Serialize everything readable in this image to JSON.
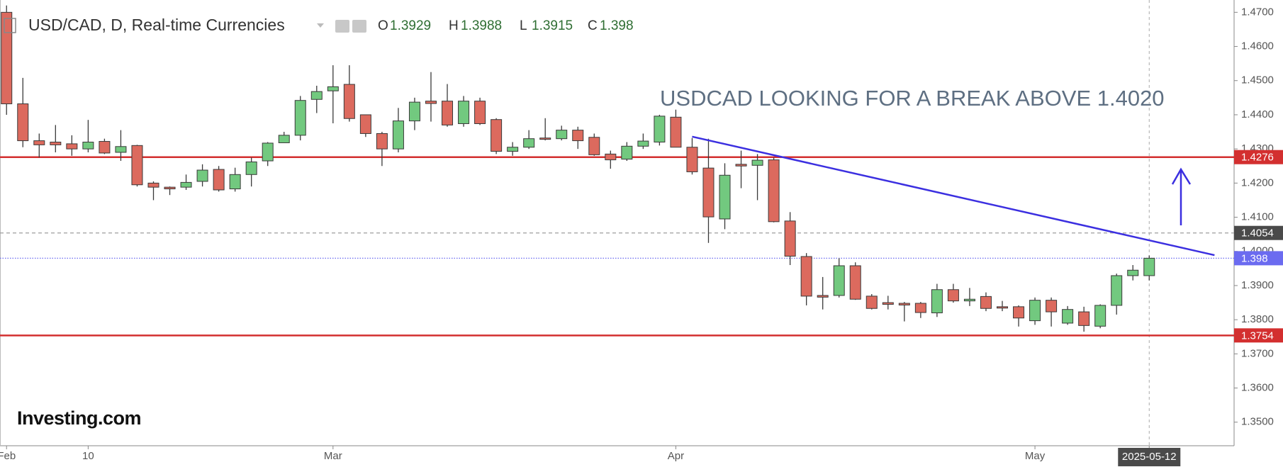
{
  "chart_data": {
    "type": "candlestick",
    "title": "USD/CAD, D, Real-time Currencies",
    "ohlc_labels": [
      "O",
      "H",
      "L",
      "C"
    ],
    "annotation": "USDCAD LOOKING FOR A BREAK ABOVE 1.4020",
    "source": "Investing.com",
    "categories": [
      "Feb",
      null,
      null,
      null,
      null,
      "10",
      null,
      null,
      null,
      null,
      null,
      null,
      null,
      null,
      null,
      null,
      null,
      null,
      null,
      null,
      "Mar",
      null,
      null,
      null,
      null,
      null,
      null,
      null,
      null,
      null,
      null,
      null,
      null,
      null,
      null,
      null,
      null,
      null,
      null,
      null,
      null,
      "Apr",
      null,
      null,
      null,
      null,
      null,
      null,
      null,
      null,
      null,
      null,
      null,
      null,
      null,
      null,
      null,
      null,
      null,
      null,
      null,
      null,
      null,
      "May",
      null,
      null,
      null,
      null,
      null,
      null,
      "2025-05-12"
    ],
    "ohlc": {
      "open": [
        1.47,
        1.4432,
        1.4324,
        1.432,
        1.4315,
        1.43,
        1.4322,
        1.429,
        1.431,
        1.42,
        1.4188,
        1.4188,
        1.4205,
        1.424,
        1.4183,
        1.4225,
        1.4265,
        1.4318,
        1.434,
        1.4445,
        1.447,
        1.4489,
        1.44,
        1.4345,
        1.43,
        1.4382,
        1.444,
        1.444,
        1.4374,
        1.444,
        1.4386,
        1.4293,
        1.4305,
        1.4332,
        1.433,
        1.4355,
        1.4334,
        1.4285,
        1.427,
        1.4308,
        1.432,
        1.4393,
        1.4305,
        1.4244,
        1.4095,
        1.4255,
        1.4252,
        1.4268,
        1.4089,
        1.3985,
        1.3871,
        1.3871,
        1.3958,
        1.3869,
        1.385,
        1.3848,
        1.3848,
        1.382,
        1.3888,
        1.3855,
        1.3868,
        1.3838,
        1.3838,
        1.3797,
        1.3857,
        1.379,
        1.3823,
        1.3781,
        1.3842,
        1.3929,
        1.3929
      ],
      "high": [
        1.472,
        1.4508,
        1.4345,
        1.437,
        1.434,
        1.4385,
        1.433,
        1.4355,
        1.4312,
        1.4205,
        1.419,
        1.4225,
        1.4255,
        1.425,
        1.4245,
        1.4275,
        1.432,
        1.435,
        1.4455,
        1.4485,
        1.4545,
        1.4545,
        1.44,
        1.435,
        1.442,
        1.445,
        1.4525,
        1.449,
        1.4455,
        1.445,
        1.439,
        1.432,
        1.4355,
        1.439,
        1.4368,
        1.4365,
        1.4345,
        1.4295,
        1.432,
        1.4345,
        1.44,
        1.4415,
        1.4332,
        1.433,
        1.4258,
        1.4295,
        1.4285,
        1.4275,
        1.4115,
        1.3995,
        1.3925,
        1.398,
        1.3968,
        1.3875,
        1.387,
        1.3852,
        1.3852,
        1.3905,
        1.3905,
        1.3893,
        1.388,
        1.3855,
        1.3842,
        1.3865,
        1.3865,
        1.384,
        1.3838,
        1.3845,
        1.3935,
        1.396,
        1.3988
      ],
      "low": [
        1.44,
        1.4305,
        1.4275,
        1.429,
        1.428,
        1.429,
        1.4285,
        1.4265,
        1.419,
        1.415,
        1.4165,
        1.418,
        1.419,
        1.4175,
        1.4175,
        1.419,
        1.425,
        1.432,
        1.4325,
        1.4405,
        1.4375,
        1.438,
        1.4335,
        1.425,
        1.429,
        1.4355,
        1.438,
        1.4365,
        1.4365,
        1.437,
        1.4285,
        1.428,
        1.43,
        1.4325,
        1.4325,
        1.43,
        1.428,
        1.4242,
        1.4265,
        1.43,
        1.431,
        1.4305,
        1.4225,
        1.4025,
        1.4065,
        1.4185,
        1.415,
        1.4085,
        1.396,
        1.3842,
        1.383,
        1.3865,
        1.3858,
        1.383,
        1.383,
        1.3795,
        1.3805,
        1.3808,
        1.385,
        1.384,
        1.3825,
        1.3825,
        1.378,
        1.3785,
        1.378,
        1.3785,
        1.3765,
        1.3775,
        1.3815,
        1.3915,
        1.3915
      ],
      "close": [
        1.4432,
        1.4324,
        1.4312,
        1.4312,
        1.43,
        1.432,
        1.4288,
        1.4307,
        1.4195,
        1.4188,
        1.4183,
        1.4202,
        1.4238,
        1.418,
        1.4225,
        1.4262,
        1.4317,
        1.434,
        1.4442,
        1.4468,
        1.4482,
        1.4389,
        1.4345,
        1.43,
        1.4382,
        1.4437,
        1.4433,
        1.437,
        1.444,
        1.4374,
        1.4293,
        1.4305,
        1.433,
        1.4328,
        1.4355,
        1.4324,
        1.4283,
        1.4268,
        1.4308,
        1.4323,
        1.4396,
        1.4305,
        1.4233,
        1.4101,
        1.4223,
        1.425,
        1.4267,
        1.4087,
        1.3986,
        1.3869,
        1.3866,
        1.3958,
        1.386,
        1.3833,
        1.3845,
        1.3843,
        1.3821,
        1.3888,
        1.3855,
        1.386,
        1.3833,
        1.3834,
        1.3805,
        1.3857,
        1.3823,
        1.383,
        1.3783,
        1.3842,
        1.3929,
        1.3945,
        1.398
      ]
    },
    "up_color": "#72c97f",
    "down_color": "#dc6a5e",
    "levels": [
      {
        "value": 1.4276,
        "color": "#d32f2f",
        "style": "solid"
      },
      {
        "value": 1.4054,
        "color": "#9e9e9e",
        "style": "dashed",
        "label_color": "#4a4a4a"
      },
      {
        "value": 1.398,
        "color": "#6b6bf0",
        "style": "dotted"
      },
      {
        "value": 1.3754,
        "color": "#d32f2f",
        "style": "solid"
      }
    ],
    "trendline": {
      "start": {
        "index": 42,
        "value": 1.4336
      },
      "end": {
        "index": 74,
        "value": 1.3989
      },
      "color": "#3b2fe0"
    },
    "ylim": [
      1.3431,
      1.4736
    ],
    "yticks": [
      {
        "value": 1.35,
        "label": "1.3500"
      },
      {
        "value": 1.36,
        "label": "1.3600"
      },
      {
        "value": 1.37,
        "label": "1.3700"
      },
      {
        "value": 1.38,
        "label": "1.3800"
      },
      {
        "value": 1.39,
        "label": "1.3900"
      },
      {
        "value": 1.4,
        "label": "1.4000"
      },
      {
        "value": 1.41,
        "label": "1.4100"
      },
      {
        "value": 1.42,
        "label": "1.4200"
      },
      {
        "value": 1.43,
        "label": "1.4300"
      },
      {
        "value": 1.44,
        "label": "1.4400"
      },
      {
        "value": 1.45,
        "label": "1.4500"
      },
      {
        "value": 1.46,
        "label": "1.4600"
      },
      {
        "value": 1.47,
        "label": "1.4700"
      }
    ]
  }
}
